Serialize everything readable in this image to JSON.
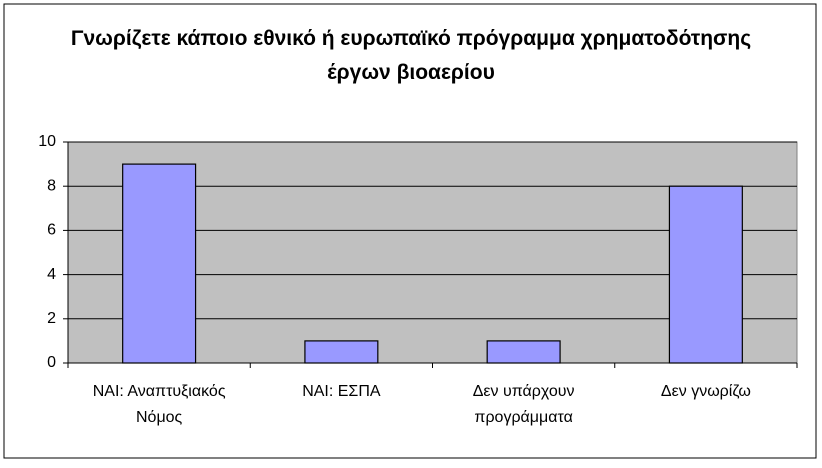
{
  "chart_data": {
    "type": "bar",
    "title": "Γνωρίζετε κάποιο εθνικό ή ευρωπαϊκό πρόγραμμα χρηματοδότησης έργων βιοαερίου",
    "categories": [
      "ΝΑΙ: Αναπτυξιακός Νόμος",
      "ΝΑΙ: ΕΣΠΑ",
      "Δεν υπάρχουν προγράμματα",
      "Δεν γνωρίζω"
    ],
    "values": [
      9,
      1,
      1,
      8
    ],
    "color": "#9999ff",
    "ylim": [
      0,
      10
    ],
    "yticks": [
      0,
      2,
      4,
      6,
      8,
      10
    ],
    "grid": true
  }
}
